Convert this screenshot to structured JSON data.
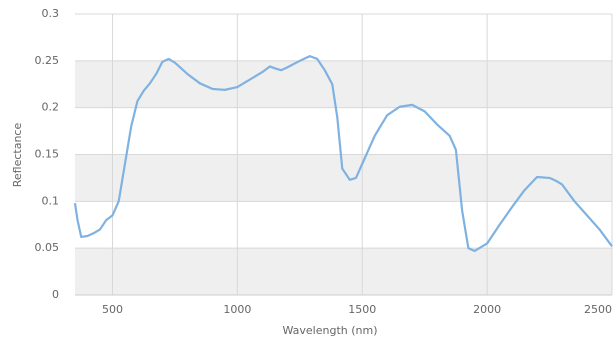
{
  "chart_data": {
    "type": "line",
    "x_label": "Wavelength (nm)",
    "y_label": "Reflectance",
    "x": [
      350,
      360,
      375,
      400,
      425,
      450,
      475,
      500,
      525,
      550,
      575,
      600,
      625,
      650,
      675,
      700,
      725,
      750,
      800,
      850,
      900,
      950,
      1000,
      1050,
      1100,
      1130,
      1150,
      1175,
      1200,
      1250,
      1290,
      1320,
      1350,
      1380,
      1400,
      1420,
      1450,
      1475,
      1500,
      1550,
      1600,
      1650,
      1700,
      1750,
      1800,
      1850,
      1875,
      1900,
      1925,
      1950,
      2000,
      2050,
      2100,
      2150,
      2200,
      2250,
      2275,
      2300,
      2350,
      2400,
      2450,
      2500
    ],
    "series": [
      {
        "name": "Reflectance",
        "color": "#7fb2e0",
        "values": [
          0.098,
          0.08,
          0.062,
          0.063,
          0.066,
          0.07,
          0.08,
          0.085,
          0.1,
          0.14,
          0.18,
          0.207,
          0.218,
          0.226,
          0.236,
          0.249,
          0.252,
          0.248,
          0.236,
          0.226,
          0.22,
          0.219,
          0.222,
          0.23,
          0.238,
          0.244,
          0.242,
          0.24,
          0.243,
          0.25,
          0.255,
          0.252,
          0.24,
          0.225,
          0.19,
          0.135,
          0.123,
          0.125,
          0.14,
          0.17,
          0.192,
          0.201,
          0.203,
          0.196,
          0.182,
          0.17,
          0.155,
          0.09,
          0.05,
          0.047,
          0.055,
          0.075,
          0.094,
          0.112,
          0.126,
          0.125,
          0.122,
          0.118,
          0.1,
          0.085,
          0.07,
          0.052
        ]
      }
    ],
    "xlim": [
      350,
      2500
    ],
    "ylim": [
      0,
      0.3
    ],
    "xticks": [
      500,
      1000,
      1500,
      2000,
      2500
    ],
    "yticks": [
      0,
      0.05,
      0.1,
      0.15,
      0.2,
      0.25,
      0.3
    ],
    "grid": true,
    "alternate_bands": true
  }
}
